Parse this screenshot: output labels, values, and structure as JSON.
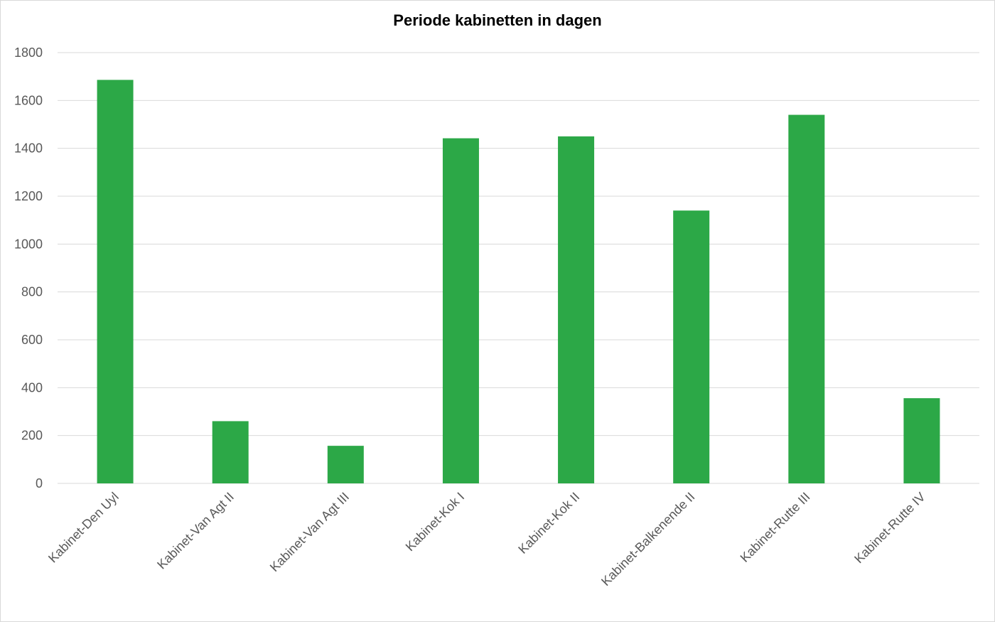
{
  "chart_data": {
    "type": "bar",
    "title": "Periode kabinetten in dagen",
    "xlabel": "",
    "ylabel": "",
    "ylim": [
      0,
      1800
    ],
    "yticks": [
      0,
      200,
      400,
      600,
      800,
      1000,
      1200,
      1400,
      1600,
      1800
    ],
    "grid": true,
    "legend": "none",
    "bar_color": "#2ca847",
    "categories": [
      "Kabinet-Den Uyl",
      "Kabinet-Van Agt II",
      "Kabinet-Van Agt III",
      "Kabinet-Kok I",
      "Kabinet-Kok II",
      "Kabinet-Balkenende II",
      "Kabinet-Rutte III",
      "Kabinet-Rutte IV"
    ],
    "values": [
      1686,
      260,
      157,
      1442,
      1450,
      1140,
      1540,
      356
    ]
  }
}
